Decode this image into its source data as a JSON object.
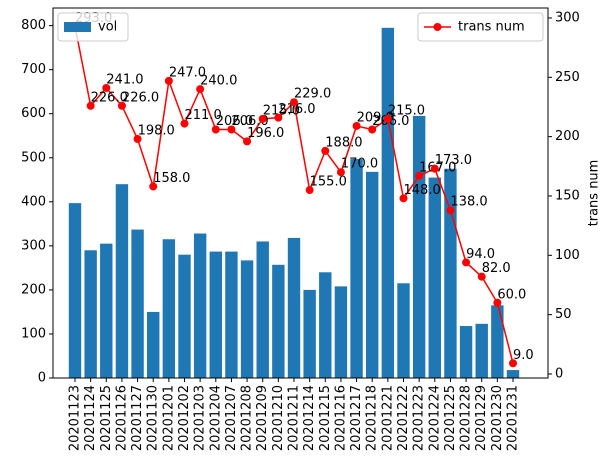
{
  "chart_data": {
    "type": "bar_line",
    "categories": [
      "20201123",
      "20201124",
      "20201125",
      "20201126",
      "20201127",
      "20201130",
      "20201201",
      "20201202",
      "20201203",
      "20201204",
      "20201207",
      "20201208",
      "20201209",
      "20201210",
      "20201211",
      "20201214",
      "20201215",
      "20201216",
      "20201217",
      "20201218",
      "20201221",
      "20201222",
      "20201223",
      "20201224",
      "20201225",
      "20201228",
      "20201229",
      "20201230",
      "20201231"
    ],
    "series": [
      {
        "name": "vol",
        "type": "bar",
        "color": "#1f77b4",
        "values": [
          397,
          290,
          305,
          440,
          337,
          150,
          315,
          280,
          328,
          287,
          287,
          267,
          310,
          257,
          318,
          200,
          240,
          208,
          497,
          468,
          795,
          215,
          595,
          455,
          475,
          118,
          123,
          165,
          18
        ]
      },
      {
        "name": "trans num",
        "type": "line",
        "axis": "y2",
        "color": "#ff0000",
        "values": [
          293,
          226,
          241,
          226,
          198,
          158,
          247,
          211,
          240,
          206,
          206,
          196,
          215,
          216,
          229,
          155,
          188,
          170,
          209,
          206,
          215,
          148,
          167,
          173,
          138,
          94,
          82,
          60,
          9
        ],
        "value_labels": [
          "293.0",
          "226.0",
          "241.0",
          "226.0",
          "198.0",
          "158.0",
          "247.0",
          "211.0",
          "240.0",
          "206.0",
          "206.0",
          "196.0",
          "215.0",
          "216.0",
          "229.0",
          "155.0",
          "188.0",
          "170.0",
          "209.0",
          "206.0",
          "215.0",
          "148.0",
          "167.0",
          "173.0",
          "138.0",
          "94.0",
          "82.0",
          "60.0",
          "9.0"
        ]
      }
    ],
    "ylim": [
      0,
      840
    ],
    "yticks": [
      0,
      100,
      200,
      300,
      400,
      500,
      600,
      700,
      800
    ],
    "y2lim": [
      -3.4,
      308.4
    ],
    "y2ticks": [
      0,
      50,
      100,
      150,
      200,
      250,
      300
    ],
    "y2label": "trans num",
    "legend": [
      "upper left",
      "upper right"
    ]
  }
}
